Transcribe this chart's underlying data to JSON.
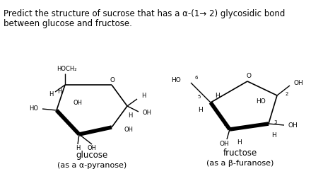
{
  "title_line1": "Predict the structure of sucrose that has a α-(1—►2) glycosidic bond",
  "title_line2": "between glucose and fructose.",
  "bg_color": "#ffffff",
  "glucose_label": "glucose",
  "glucose_sublabel": "(as a α-pyranose)",
  "fructose_label": "fructose",
  "fructose_sublabel": "(as a β-furanose)"
}
